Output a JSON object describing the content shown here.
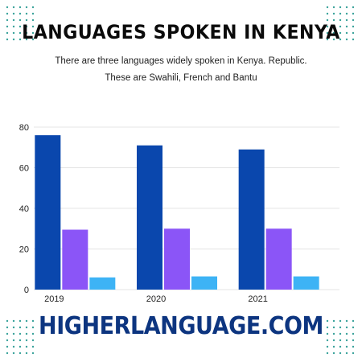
{
  "title": "LANGUAGES SPOKEN IN KENYA",
  "subtitle_line1": "There are three languages widely spoken in Kenya. Republic.",
  "subtitle_line2": "These are Swahili, French and Bantu",
  "footer": "HIGHERLANGUAGE.COM",
  "colors": {
    "dots": "#3aa39b",
    "footer": "#0d3580",
    "grid": "#e4e4e4"
  },
  "chart_data": {
    "type": "bar",
    "categories": [
      "2019",
      "2020",
      "2021"
    ],
    "series": [
      {
        "values": [
          76,
          71,
          69
        ],
        "color": "#0a47ad"
      },
      {
        "values": [
          29.5,
          30,
          30
        ],
        "color": "#8b55f7"
      },
      {
        "values": [
          6,
          6.5,
          6.5
        ],
        "color": "#3db3f5"
      }
    ],
    "yticks": [
      0,
      20,
      40,
      60,
      80
    ],
    "ylim": [
      0,
      80
    ],
    "grid": true,
    "legend": "none"
  }
}
